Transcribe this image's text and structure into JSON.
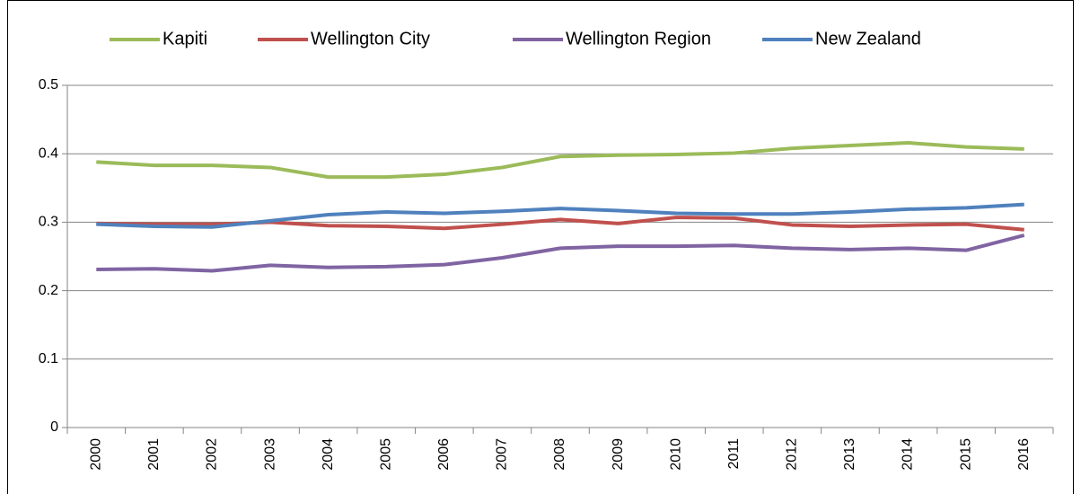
{
  "chart_data": {
    "type": "line",
    "categories": [
      "2000",
      "2001",
      "2002",
      "2003",
      "2004",
      "2005",
      "2006",
      "2007",
      "2008",
      "2009",
      "2010",
      "2011",
      "2012",
      "2013",
      "2014",
      "2015",
      "2016"
    ],
    "series": [
      {
        "name": "Kapiti",
        "color": "#9bbb59",
        "values": [
          0.388,
          0.383,
          0.383,
          0.38,
          0.366,
          0.366,
          0.37,
          0.38,
          0.396,
          0.398,
          0.399,
          0.401,
          0.408,
          0.412,
          0.416,
          0.41,
          0.407
        ]
      },
      {
        "name": "Wellington City",
        "color": "#c0504d",
        "values": [
          0.298,
          0.297,
          0.297,
          0.3,
          0.295,
          0.294,
          0.291,
          0.297,
          0.304,
          0.298,
          0.307,
          0.306,
          0.296,
          0.294,
          0.296,
          0.297,
          0.289
        ]
      },
      {
        "name": "Wellington Region",
        "color": "#8064a2",
        "values": [
          0.231,
          0.232,
          0.229,
          0.237,
          0.234,
          0.235,
          0.238,
          0.248,
          0.262,
          0.265,
          0.265,
          0.266,
          0.262,
          0.26,
          0.262,
          0.259,
          0.281
        ]
      },
      {
        "name": "New Zealand",
        "color": "#4f81bd",
        "values": [
          0.297,
          0.294,
          0.293,
          0.302,
          0.311,
          0.315,
          0.313,
          0.316,
          0.32,
          0.317,
          0.313,
          0.312,
          0.312,
          0.315,
          0.319,
          0.321,
          0.326
        ]
      }
    ],
    "ylim": [
      0,
      0.5
    ],
    "yticks": [
      0,
      0.1,
      0.2,
      0.3,
      0.4,
      0.5
    ],
    "grid": true,
    "legend": "top"
  }
}
